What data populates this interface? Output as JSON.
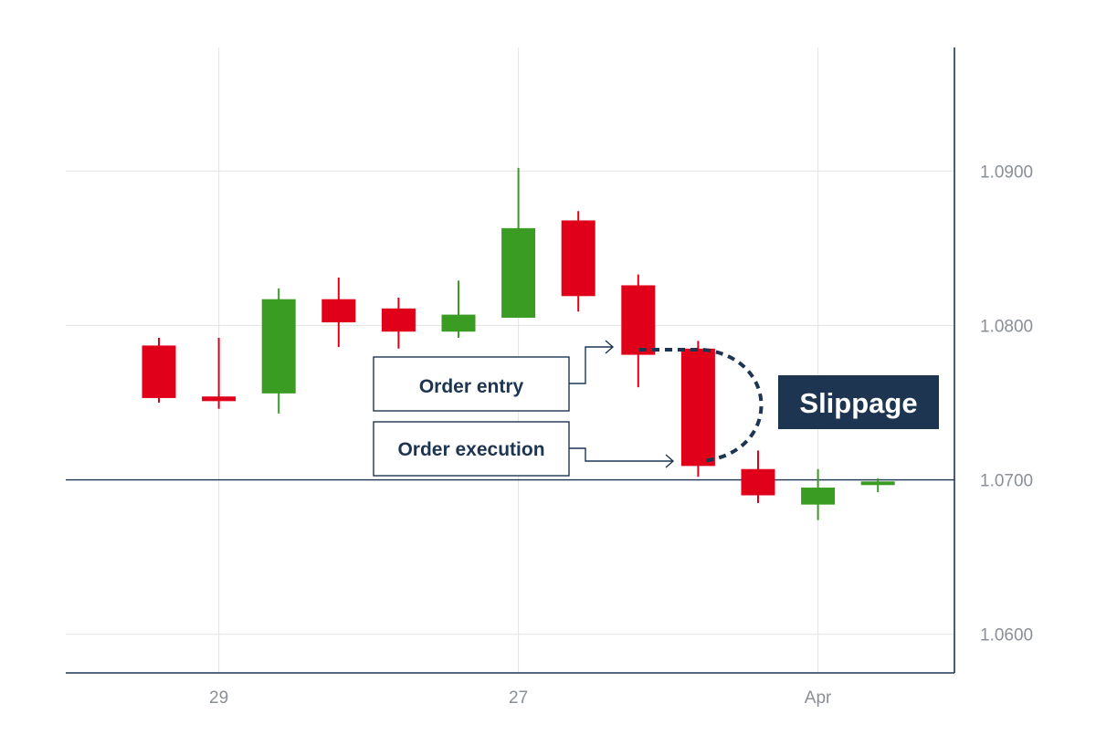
{
  "chart_data": {
    "type": "candlestick",
    "x_tick_labels": [
      "29",
      "27",
      "Apr"
    ],
    "y_tick_labels": [
      "1.0900",
      "1.0800",
      "1.0700",
      "1.0600"
    ],
    "ylim": [
      1.0575,
      1.098
    ],
    "grid": true,
    "reference_line": 1.07,
    "colors": {
      "up": "#3a9c23",
      "down": "#e1001a",
      "axis": "#1d3550",
      "grid": "#e4e4e4"
    },
    "candles": [
      {
        "open": 1.0787,
        "close": 1.0753,
        "high": 1.0792,
        "low": 1.075
      },
      {
        "open": 1.0754,
        "close": 1.0751,
        "high": 1.0792,
        "low": 1.0746
      },
      {
        "open": 1.0756,
        "close": 1.0817,
        "high": 1.0824,
        "low": 1.0743
      },
      {
        "open": 1.0817,
        "close": 1.0802,
        "high": 1.0831,
        "low": 1.0786
      },
      {
        "open": 1.0811,
        "close": 1.0796,
        "high": 1.0818,
        "low": 1.0785
      },
      {
        "open": 1.0796,
        "close": 1.0807,
        "high": 1.0829,
        "low": 1.0792
      },
      {
        "open": 1.0805,
        "close": 1.0863,
        "high": 1.0902,
        "low": 1.0805
      },
      {
        "open": 1.0868,
        "close": 1.0819,
        "high": 1.0874,
        "low": 1.0809
      },
      {
        "open": 1.0826,
        "close": 1.0781,
        "high": 1.0833,
        "low": 1.076
      },
      {
        "open": 1.0785,
        "close": 1.0709,
        "high": 1.079,
        "low": 1.0702
      },
      {
        "open": 1.0707,
        "close": 1.069,
        "high": 1.0719,
        "low": 1.0685
      },
      {
        "open": 1.0684,
        "close": 1.0695,
        "high": 1.0707,
        "low": 1.0674
      },
      {
        "open": 1.0697,
        "close": 1.0699,
        "high": 1.0701,
        "low": 1.0692
      }
    ]
  },
  "annotations": {
    "order_entry": "Order entry",
    "order_execution": "Order execution",
    "slippage": "Slippage",
    "order_entry_price": 1.0781,
    "order_execution_price": 1.0709,
    "slippage_color": "#1d3550"
  }
}
